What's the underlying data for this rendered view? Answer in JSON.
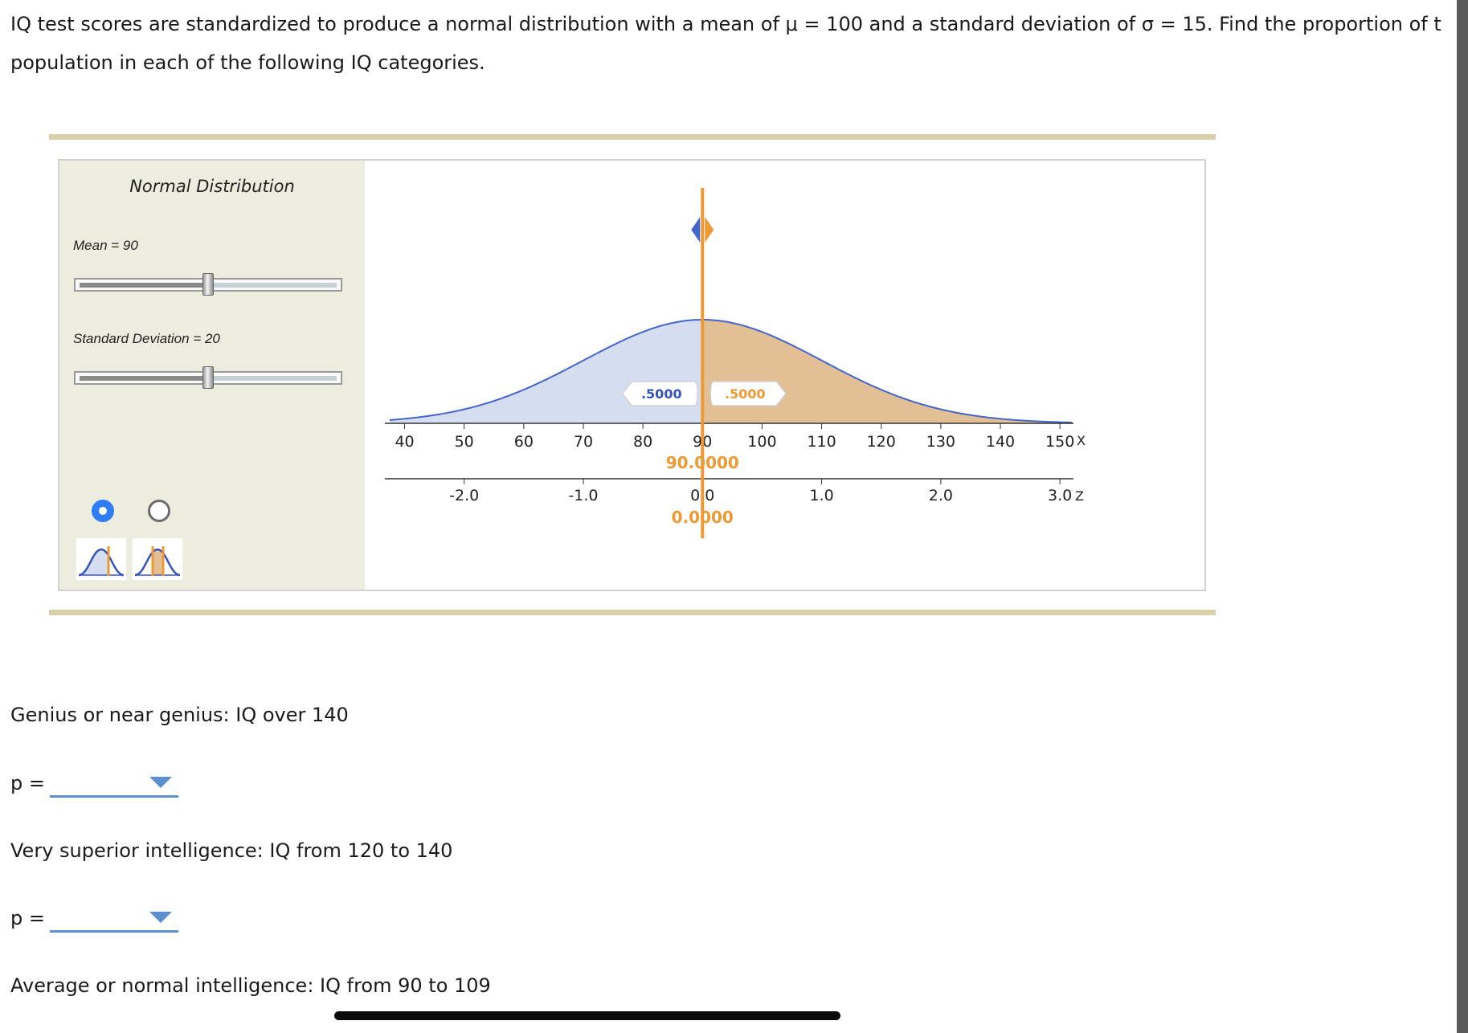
{
  "question": {
    "line1": "IQ test scores are standardized to produce a normal distribution with a mean of μ = 100 and a standard deviation of σ = 15. Find the proportion of t",
    "line2": "population in each of the following IQ categories."
  },
  "applet": {
    "title": "Normal Distribution",
    "mean_label": "Mean = 90",
    "sd_label": "Standard Deviation = 20",
    "mean_slider_fraction": 0.5,
    "sd_slider_fraction": 0.5,
    "mode_selected": 0,
    "colors": {
      "left_area": "#d5ddf0",
      "right_area": "#e2bf95",
      "curve": "#4466cc",
      "cursor": "#ee9933",
      "blue_label": "#3355bb"
    }
  },
  "chart_data": {
    "type": "area",
    "distribution": "normal",
    "mean": 90,
    "sd": 20,
    "x_ticks": [
      "40",
      "50",
      "60",
      "70",
      "80",
      "90",
      "100",
      "110",
      "120",
      "130",
      "140",
      "150"
    ],
    "x_axis_letter": "X",
    "z_ticks": [
      "-2.0",
      "-1.0",
      "0.0",
      "1.0",
      "2.0",
      "3.0"
    ],
    "z_axis_letter": "Z",
    "xlim": [
      37.5,
      152
    ],
    "cut_x": 90,
    "cut_x_readout": "90.0000",
    "cut_z_readout": "0.0000",
    "left_area_label": ".5000",
    "right_area_label": ".5000"
  },
  "problems": [
    {
      "text": "Genius or near genius: IQ over 140",
      "p_label": "p =",
      "value": ""
    },
    {
      "text": "Very superior intelligence: IQ from 120 to 140",
      "p_label": "p =",
      "value": ""
    },
    {
      "text": "Average or normal intelligence: IQ from 90 to 109"
    }
  ]
}
